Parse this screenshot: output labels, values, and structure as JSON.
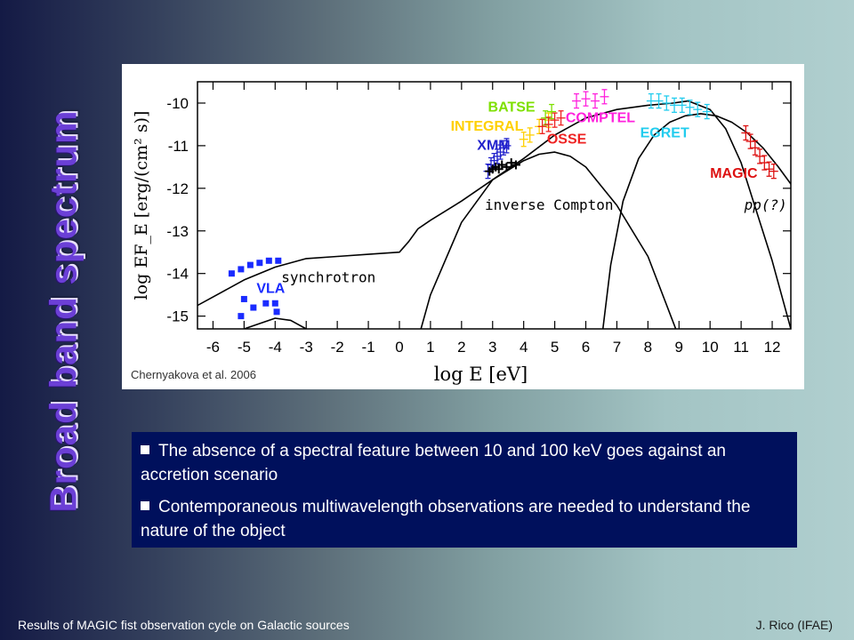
{
  "slide": {
    "title": "Broad band spectrum",
    "citation": "Chernyakova et al. 2006",
    "bullets": [
      "The absence of a spectral feature between 10 and 100 keV goes against an accretion scenario",
      "Contemporaneous multiwavelength observations are needed to understand the nature of the object"
    ],
    "footer_left": "Results of MAGIC fist observation cycle on Galactic sources",
    "footer_right": "J. Rico (IFAE)"
  },
  "chart_data": {
    "type": "scatter",
    "xlabel": "log E [eV]",
    "ylabel": "log EF_E [erg/(cm² s)]",
    "xlim": [
      -6.5,
      12.6
    ],
    "ylim": [
      -15.3,
      -9.5
    ],
    "x_ticks": [
      -6,
      -5,
      -4,
      -3,
      -2,
      -1,
      0,
      1,
      2,
      3,
      4,
      5,
      6,
      7,
      8,
      9,
      10,
      11,
      12
    ],
    "y_ticks": [
      -15,
      -14,
      -13,
      -12,
      -11,
      -10
    ],
    "grid": false,
    "series": [
      {
        "name": "VLA",
        "color": "#1a2bff",
        "x": [
          -5.4,
          -5.1,
          -4.8,
          -4.5,
          -4.2,
          -3.9,
          -5.0,
          -4.7,
          -4.3,
          -4.0,
          -5.1,
          -3.95
        ],
        "y": [
          -14.0,
          -13.9,
          -13.8,
          -13.75,
          -13.7,
          -13.7,
          -14.6,
          -14.8,
          -14.7,
          -14.7,
          -15.0,
          -14.9
        ]
      },
      {
        "name": "XMM",
        "color": "#2222cc",
        "x": [
          2.85,
          2.95,
          3.05,
          3.15,
          3.25,
          3.35,
          3.45
        ],
        "y": [
          -11.6,
          -11.45,
          -11.35,
          -11.25,
          -11.15,
          -11.05,
          -11.0
        ]
      },
      {
        "name": "",
        "color": "#000000",
        "x": [
          2.9,
          3.0,
          3.1,
          3.2,
          3.3,
          3.45,
          3.6,
          3.75
        ],
        "y": [
          -11.6,
          -11.55,
          -11.5,
          -11.55,
          -11.45,
          -11.5,
          -11.4,
          -11.45
        ]
      },
      {
        "name": "INTEGRAL",
        "color": "#ffd000",
        "x": [
          4.0,
          4.2,
          4.5,
          4.8
        ],
        "y": [
          -10.85,
          -10.75,
          -10.55,
          -10.4
        ]
      },
      {
        "name": "BATSE",
        "color": "#7ee000",
        "x": [
          4.7,
          4.9
        ],
        "y": [
          -10.35,
          -10.2
        ]
      },
      {
        "name": "OSSE",
        "color": "#ee2222",
        "x": [
          4.6,
          4.8,
          5.0,
          5.2
        ],
        "y": [
          -10.55,
          -10.5,
          -10.4,
          -10.35
        ]
      },
      {
        "name": "COMPTEL",
        "color": "#ff22dd",
        "x": [
          5.7,
          6.0,
          6.3,
          6.6
        ],
        "y": [
          -9.95,
          -9.9,
          -9.95,
          -9.85
        ]
      },
      {
        "name": "EGRET",
        "color": "#22ccee",
        "x": [
          8.1,
          8.35,
          8.6,
          8.85,
          9.1,
          9.35,
          9.6,
          9.9
        ],
        "y": [
          -9.95,
          -9.95,
          -10.0,
          -10.05,
          -10.05,
          -10.1,
          -10.15,
          -10.2
        ]
      },
      {
        "name": "MAGIC",
        "color": "#dd1111",
        "x": [
          11.15,
          11.3,
          11.45,
          11.6,
          11.75,
          11.9,
          12.05
        ],
        "y": [
          -10.7,
          -10.9,
          -11.05,
          -11.25,
          -11.4,
          -11.55,
          -11.6
        ]
      }
    ],
    "models": [
      {
        "name": "synchrotron",
        "x": [
          -6.5,
          -6,
          -5,
          -4,
          -3.5,
          -3,
          -2,
          -1,
          0,
          0.5,
          1,
          2,
          3,
          4,
          4.5,
          5,
          5.5,
          6,
          7,
          8,
          9
        ],
        "y": [
          -15.9,
          -15.7,
          -15.3,
          -15.05,
          -15.1,
          -15.3,
          -15.85,
          -16.4,
          -16.7,
          -15.8,
          -14.5,
          -12.8,
          -11.8,
          -11.35,
          -11.2,
          -11.15,
          -11.25,
          -11.5,
          -12.4,
          -13.6,
          -15.5
        ]
      },
      {
        "name": "inverse Compton",
        "x": [
          -6.5,
          -6,
          -5,
          -4,
          -3,
          -2,
          -1,
          0,
          0.3,
          0.6,
          1,
          2,
          3,
          4,
          5,
          6,
          7,
          8,
          8.8,
          9.3,
          10,
          10.5,
          11,
          12,
          12.6
        ],
        "y": [
          -14.75,
          -14.55,
          -14.15,
          -13.85,
          -13.65,
          -13.6,
          -13.55,
          -13.5,
          -13.25,
          -12.95,
          -12.75,
          -12.3,
          -11.8,
          -11.3,
          -10.75,
          -10.35,
          -10.15,
          -10.05,
          -10.0,
          -9.95,
          -10.15,
          -10.6,
          -11.4,
          -13.7,
          -15.3
        ]
      },
      {
        "name": "pp(?)",
        "x": [
          6.5,
          6.8,
          7.2,
          7.7,
          8.2,
          8.7,
          9.2,
          9.7,
          10.2,
          10.7,
          11.2,
          11.7,
          12.2,
          12.6
        ],
        "y": [
          -15.6,
          -13.8,
          -12.3,
          -11.3,
          -10.75,
          -10.45,
          -10.3,
          -10.25,
          -10.3,
          -10.45,
          -10.7,
          -11.05,
          -11.5,
          -11.9
        ]
      }
    ],
    "annotations": [
      {
        "text": "BATSE",
        "color": "#7ee000"
      },
      {
        "text": "INTEGRAL",
        "color": "#ffd000"
      },
      {
        "text": "XMM",
        "color": "#2222cc"
      },
      {
        "text": "COMPTEL",
        "color": "#ff22dd"
      },
      {
        "text": "OSSE",
        "color": "#ee2222"
      },
      {
        "text": "EGRET",
        "color": "#22ccee"
      },
      {
        "text": "MAGIC",
        "color": "#dd1111"
      },
      {
        "text": "VLA",
        "color": "#1a2bff"
      },
      {
        "text": "synchrotron",
        "color": "#000000"
      },
      {
        "text": "inverse Compton",
        "color": "#000000"
      },
      {
        "text": "pp(?)",
        "color": "#000000"
      }
    ]
  }
}
